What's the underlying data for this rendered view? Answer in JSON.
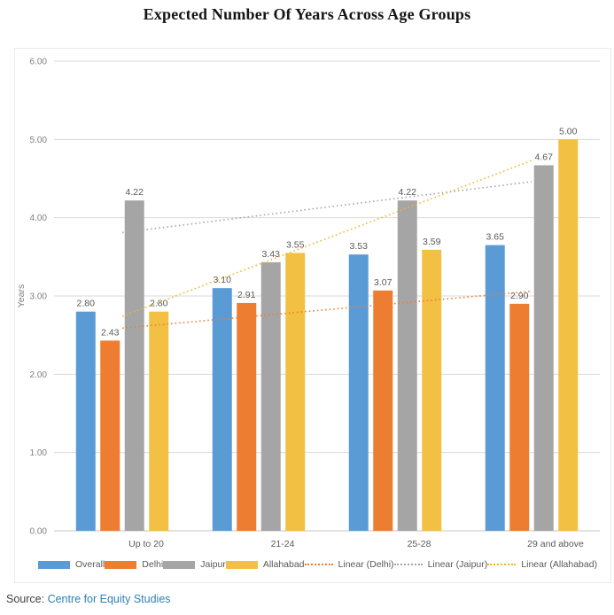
{
  "page": {
    "title": "Expected Number Of Years Across Age Groups",
    "source": {
      "prefix": "Source:",
      "link_text": "Centre for Equity Studies",
      "link_color": "#2e80b9"
    }
  },
  "chart_data": {
    "type": "bar",
    "title": "Expected Number Of Years Across Age Groups",
    "xlabel": "",
    "ylabel": "Years",
    "ylim": [
      0,
      6
    ],
    "yticks": [
      0,
      1,
      2,
      3,
      4,
      5,
      6
    ],
    "ytick_labels": [
      "0.00",
      "1.00",
      "2.00",
      "3.00",
      "4.00",
      "5.00",
      "6.00"
    ],
    "grid": true,
    "value_labels": true,
    "value_label_format": "2dp",
    "legend_position": "bottom",
    "categories": [
      "Up to 20",
      "21-24",
      "25-28",
      "29 and above"
    ],
    "series": [
      {
        "name": "Overall",
        "color": "#5B9BD5",
        "values": [
          2.8,
          3.1,
          3.53,
          3.65
        ]
      },
      {
        "name": "Delhi",
        "color": "#ED7D31",
        "values": [
          2.43,
          2.91,
          3.07,
          2.9
        ]
      },
      {
        "name": "Jaipur",
        "color": "#A5A5A5",
        "values": [
          4.22,
          3.43,
          4.22,
          4.67
        ]
      },
      {
        "name": "Allahabad",
        "color": "#F2C143",
        "values": [
          2.8,
          3.55,
          3.59,
          5.0
        ]
      }
    ],
    "trendlines": [
      {
        "name": "Linear (Delhi)",
        "series": "Delhi",
        "color": "#ED7D31",
        "start": 2.59,
        "end": 3.06
      },
      {
        "name": "Linear (Jaipur)",
        "series": "Jaipur",
        "color": "#A5A5A5",
        "start": 3.81,
        "end": 4.46
      },
      {
        "name": "Linear (Allahabad)",
        "series": "Allahabad",
        "color": "#F0B429",
        "start": 2.74,
        "end": 4.73
      }
    ],
    "colors": {
      "gridline": "#d9d9d9",
      "axis_line": "#c6c6c6",
      "tick_label": "#808080",
      "data_label": "#595959",
      "axis_title": "#808080"
    }
  }
}
